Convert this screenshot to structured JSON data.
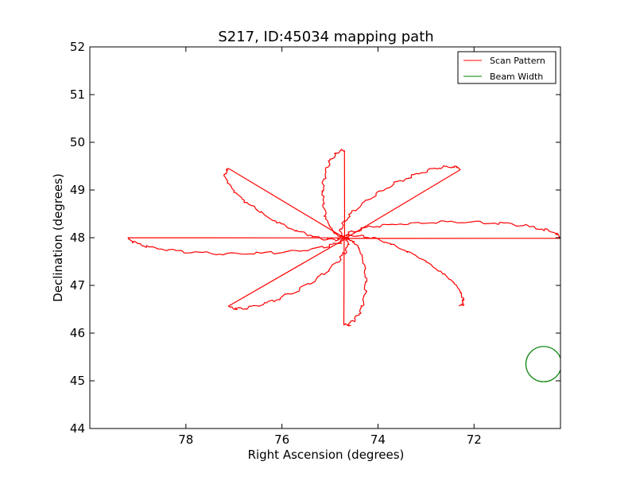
{
  "chart_data": {
    "type": "line",
    "title": "S217, ID:45034 mapping path",
    "xlabel": "Right Ascension (degrees)",
    "ylabel": "Declination (degrees)",
    "xlim": [
      80,
      70.2
    ],
    "ylim": [
      44,
      52
    ],
    "x_inverted": true,
    "xticks": [
      78,
      76,
      74,
      72
    ],
    "yticks": [
      44,
      45,
      46,
      47,
      48,
      49,
      50,
      51,
      52
    ],
    "grid": false,
    "legend_position": "top-right",
    "series": [
      {
        "name": "Scan Pattern",
        "color": "#ff0000",
        "shape": "rose",
        "center": [
          74.7,
          48.0
        ],
        "petals": 8,
        "petal_reach_deg": 5.4,
        "petal_half_width_deg": 0.45,
        "petal_reach_vertical_deg": 3.05,
        "start": [
          74.0,
          46.1
        ],
        "end": [
          74.0,
          46.15
        ]
      },
      {
        "name": "Beam Width",
        "color": "#008000",
        "shape": "circle",
        "center": [
          70.55,
          45.35
        ],
        "radius_deg": 0.37
      }
    ]
  }
}
